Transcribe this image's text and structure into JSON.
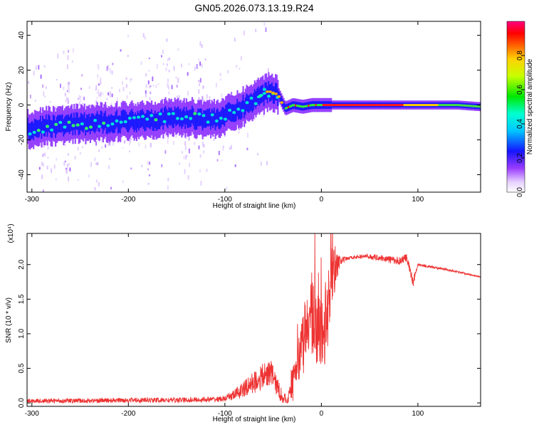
{
  "title": "GN05.2026.073.13.19.R24",
  "chart_data": [
    {
      "type": "heatmap",
      "name": "spectrogram",
      "xlabel": "Height of straight line (km)",
      "ylabel": "Frequency (Hz)",
      "xlim": [
        -305,
        165
      ],
      "ylim": [
        -50,
        48
      ],
      "xticks": [
        -300,
        -200,
        -100,
        0,
        100
      ],
      "yticks": [
        -40,
        -20,
        0,
        20,
        40
      ],
      "colorbar": {
        "label": "Normalized spectral amplitude",
        "range": [
          0,
          1
        ],
        "ticks": [
          "0.0",
          "0.2",
          "0.4",
          "0.6",
          "0.8"
        ]
      },
      "ridge": {
        "description": "frequency of the peak spectral amplitude vs height",
        "x": [
          -305,
          -280,
          -250,
          -200,
          -150,
          -110,
          -90,
          -70,
          -55,
          -45,
          -38,
          -30,
          -20,
          -10,
          0,
          20,
          60,
          100,
          140,
          165
        ],
        "y": [
          -14,
          -12,
          -11,
          -9,
          -7,
          -8,
          -4,
          3,
          8,
          6,
          -2,
          0,
          -1,
          0,
          0,
          0,
          0,
          0,
          0,
          -1
        ]
      }
    },
    {
      "type": "line",
      "name": "snr",
      "xlabel": "Height of straight line (km)",
      "ylabel": "SNR (10 * v/v)",
      "y_multiplier": "(x10⁴)",
      "xlim": [
        -305,
        165
      ],
      "ylim": [
        -0.05,
        2.45
      ],
      "xticks": [
        -300,
        -200,
        -100,
        0,
        100
      ],
      "yticks": [
        "0.0",
        "0.5",
        "1.0",
        "1.5",
        "2.0"
      ],
      "color": "#ee3333",
      "envelope": {
        "x": [
          -305,
          -250,
          -200,
          -150,
          -110,
          -100,
          -90,
          -80,
          -70,
          -60,
          -52,
          -45,
          -40,
          -35,
          -30,
          -25,
          -20,
          -15,
          -10,
          -5,
          0,
          5,
          10,
          15,
          20,
          30,
          45,
          60,
          80,
          88,
          95,
          100,
          120,
          140,
          165
        ],
        "y": [
          0.03,
          0.03,
          0.04,
          0.04,
          0.05,
          0.06,
          0.12,
          0.2,
          0.3,
          0.38,
          0.45,
          0.2,
          0.08,
          0.03,
          0.25,
          0.55,
          0.85,
          1.0,
          1.2,
          1.1,
          0.9,
          1.1,
          1.75,
          1.95,
          2.05,
          2.1,
          2.12,
          2.1,
          2.05,
          2.1,
          1.75,
          2.0,
          1.95,
          1.9,
          1.82
        ]
      },
      "noise": {
        "x": [
          -305,
          -100,
          -90,
          -60,
          -45,
          -35,
          -30,
          -20,
          -10,
          0,
          10,
          15,
          20,
          30,
          85,
          95,
          100,
          165
        ],
        "amp": [
          0.03,
          0.04,
          0.08,
          0.2,
          0.15,
          0.05,
          0.25,
          0.45,
          0.6,
          0.55,
          0.5,
          0.25,
          0.06,
          0.02,
          0.06,
          0.08,
          0.02,
          0.01
        ]
      }
    }
  ]
}
